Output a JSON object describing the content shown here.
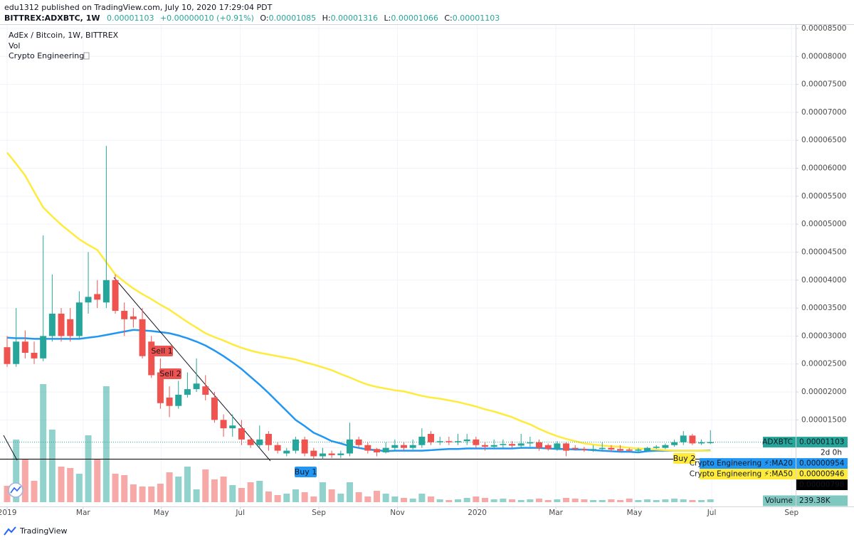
{
  "header": {
    "publisher": "edu1312 published on TradingView.com, July 10, 2020 17:29:04 PDT",
    "symbol": "BITTREX:ADXBTC, 1W",
    "last": "0.00001103",
    "change": "+0.00000010 (+0.91%)",
    "o_key": "O:",
    "o": "0.00001085",
    "h_key": "H:",
    "h": "0.00001316",
    "l_key": "L:",
    "l": "0.00001066",
    "c_key": "C:",
    "c": "0.00001103"
  },
  "legend": [
    "AdEx / Bitcoin, 1W, BITTREX",
    "Vol",
    "Crypto Engineering"
  ],
  "annotations": [
    "Sell 1",
    "Sell 2",
    "Buy 1",
    "Buy 2"
  ],
  "footer": "TradingView",
  "chart_data": {
    "type": "candlestick",
    "up_color": "#26a69a",
    "down_color": "#ef5350",
    "open": [
      2.8e-05,
      2.5e-05,
      2.9e-05,
      2.7e-05,
      2.6e-05,
      3e-05,
      3.4e-05,
      3.3e-05,
      3e-05,
      3.6e-05,
      3.75e-05,
      3.6e-05,
      4e-05,
      3.45e-05,
      3.35e-05,
      3.3e-05,
      2.9e-05,
      2.35e-05,
      1.9e-05,
      1.75e-05,
      1.95e-05,
      2.05e-05,
      2.1e-05,
      1.9e-05,
      1.5e-05,
      1.35e-05,
      1.35e-05,
      1.15e-05,
      1.05e-05,
      1.25e-05,
      1.05e-05,
      9e-06,
      9.5e-06,
      1.15e-05,
      9.5e-06,
      8.5e-06,
      9e-06,
      8.7e-06,
      9e-06,
      1.15e-05,
      1.05e-05,
      9.8e-06,
      9.2e-06,
      1e-05,
      1.05e-05,
      1e-05,
      1.05e-05,
      1.25e-05,
      1.1e-05,
      1.12e-05,
      1.1e-05,
      1.12e-05,
      1.15e-05,
      1.05e-05,
      1.02e-05,
      1.05e-05,
      1.07e-05,
      1.04e-05,
      1.08e-05,
      1.1e-05,
      1.05e-05,
      9.8e-06,
      1.08e-05,
      1e-05,
      9.8e-06,
      9.6e-06,
      9.8e-06,
      1e-05,
      9.8e-06,
      9.7e-06,
      9.5e-06,
      9.5e-06,
      1e-05,
      1e-05,
      1.05e-05,
      1.1e-05,
      1.22e-05,
      1.08e-05,
      1.085e-05
    ],
    "high": [
      3e-05,
      3.5e-05,
      3.1e-05,
      2.9e-05,
      4.8e-05,
      4.1e-05,
      3.5e-05,
      3.5e-05,
      3.8e-05,
      4.5e-05,
      4e-05,
      6.4e-05,
      4.1e-05,
      3.6e-05,
      3.5e-05,
      3.5e-05,
      3e-05,
      2.6e-05,
      2.1e-05,
      2.2e-05,
      2.35e-05,
      2.6e-05,
      2.3e-05,
      2e-05,
      1.6e-05,
      1.6e-05,
      1.5e-05,
      1.2e-05,
      1.4e-05,
      1.3e-05,
      1.1e-05,
      1e-05,
      1.2e-05,
      1.2e-05,
      1e-05,
      1e-05,
      9.5e-06,
      9.5e-06,
      1.45e-05,
      1.2e-05,
      1.1e-05,
      1e-05,
      1.1e-05,
      1.15e-05,
      1.1e-05,
      1.15e-05,
      1.35e-05,
      1.3e-05,
      1.2e-05,
      1.2e-05,
      1.25e-05,
      1.25e-05,
      1.2e-05,
      1.1e-05,
      1.15e-05,
      1.15e-05,
      1.12e-05,
      1.25e-05,
      1.2e-05,
      1.15e-05,
      1.08e-05,
      1.12e-05,
      1.1e-05,
      1.05e-05,
      1.02e-05,
      1.05e-05,
      1.1e-05,
      1.05e-05,
      1.05e-05,
      1e-05,
      1e-05,
      1.02e-05,
      1.05e-05,
      1.08e-05,
      1.15e-05,
      1.3e-05,
      1.25e-05,
      1.15e-05,
      1.316e-05
    ],
    "low": [
      2.45e-05,
      2.45e-05,
      2.6e-05,
      2.5e-05,
      2.55e-05,
      2.9e-05,
      2.9e-05,
      2.9e-05,
      2.95e-05,
      3.4e-05,
      3.5e-05,
      3.5e-05,
      3.4e-05,
      3e-05,
      3.15e-05,
      2.6e-05,
      2.25e-05,
      1.7e-05,
      1.55e-05,
      1.7e-05,
      1.9e-05,
      2e-05,
      1.85e-05,
      1.45e-05,
      1.2e-05,
      1.2e-05,
      1.05e-05,
      1e-05,
      1e-05,
      9.5e-06,
      9e-06,
      8.5e-06,
      9e-06,
      8.5e-06,
      8e-06,
      8e-06,
      8.2e-06,
      8.2e-06,
      8.5e-06,
      1e-05,
      9e-06,
      8.5e-06,
      9e-06,
      9.5e-06,
      9.5e-06,
      9.7e-06,
      1e-05,
      1.05e-05,
      1.05e-05,
      1.05e-05,
      1.05e-05,
      1.05e-05,
      1e-05,
      9.5e-06,
      9.8e-06,
      1e-05,
      1e-05,
      1e-05,
      1.02e-05,
      9.5e-06,
      9.5e-06,
      9.5e-06,
      8.5e-06,
      9.5e-06,
      9.3e-06,
      9.3e-06,
      9.5e-06,
      9.3e-06,
      9.2e-06,
      9.2e-06,
      9.2e-06,
      9.3e-06,
      9.8e-06,
      9.8e-06,
      1.02e-05,
      1.05e-05,
      1.05e-05,
      1.05e-05,
      1.066e-05
    ],
    "close": [
      2.5e-05,
      2.9e-05,
      2.7e-05,
      2.6e-05,
      3e-05,
      3.4e-05,
      3e-05,
      3e-05,
      3.6e-05,
      3.7e-05,
      3.65e-05,
      4e-05,
      3.45e-05,
      3.3e-05,
      3.3e-05,
      2.64e-05,
      2.3e-05,
      1.8e-05,
      1.75e-05,
      1.95e-05,
      2.05e-05,
      2.15e-05,
      1.95e-05,
      1.5e-05,
      1.35e-05,
      1.4e-05,
      1.15e-05,
      1.05e-05,
      1.15e-05,
      1.05e-05,
      9.5e-06,
      9.5e-06,
      1.15e-05,
      9e-06,
      8.5e-06,
      9e-06,
      8.7e-06,
      9e-06,
      1.15e-05,
      1.05e-05,
      9.5e-06,
      9.2e-06,
      1e-05,
      1.05e-05,
      1e-05,
      1.05e-05,
      1.2e-05,
      1.1e-05,
      1.12e-05,
      1.1e-05,
      1.12e-05,
      1.15e-05,
      1.05e-05,
      1.02e-05,
      1.05e-05,
      1.07e-05,
      1.04e-05,
      1.08e-05,
      1.1e-05,
      1e-05,
      9.8e-06,
      1.08e-05,
      9.5e-06,
      9.8e-06,
      9.6e-06,
      9.8e-06,
      1e-05,
      9.7e-06,
      9.5e-06,
      9.5e-06,
      9.7e-06,
      1e-05,
      1.02e-05,
      1.05e-05,
      1.1e-05,
      1.22e-05,
      1.08e-05,
      1.1e-05,
      1.103e-05
    ],
    "symbol_tag": "ADXBTC",
    "close_label": "0.00001103",
    "countdown": "2d 0h",
    "volume": {
      "name": "Volume",
      "value_label": "239.38K",
      "values": [
        1380000,
        5280000,
        3600000,
        1800000,
        9960000,
        6120000,
        3000000,
        2880000,
        2400000,
        5640000,
        3600000,
        9780000,
        2400000,
        2280000,
        1500000,
        1320000,
        1320000,
        1560000,
        2520000,
        2160000,
        3000000,
        1080000,
        2760000,
        1920000,
        2160000,
        1440000,
        1200000,
        1680000,
        1800000,
        900000,
        600000,
        720000,
        1080000,
        840000,
        480000,
        1680000,
        1080000,
        720000,
        1680000,
        840000,
        480000,
        960000,
        720000,
        480000,
        360000,
        300000,
        720000,
        480000,
        240000,
        180000,
        240000,
        360000,
        480000,
        360000,
        240000,
        300000,
        240000,
        180000,
        240000,
        300000,
        180000,
        240000,
        360000,
        300000,
        240000,
        180000,
        180000,
        240000,
        180000,
        300000,
        180000,
        240000,
        180000,
        240000,
        300000,
        240000,
        180000,
        180000,
        239380
      ]
    },
    "series": [
      {
        "name": "Crypto Engineering ⚡:MA20",
        "color": "#2196f3",
        "value_label": "0.00000954",
        "values": [
          2.97e-05,
          2.96e-05,
          2.96e-05,
          2.95e-05,
          2.95e-05,
          2.95e-05,
          2.95e-05,
          2.95e-05,
          2.95e-05,
          2.97e-05,
          2.99e-05,
          3.02e-05,
          3.05e-05,
          3.08e-05,
          3.11e-05,
          3.1e-05,
          3.09e-05,
          3.07e-05,
          3.05e-05,
          3.01e-05,
          2.96e-05,
          2.9e-05,
          2.83e-05,
          2.74e-05,
          2.64e-05,
          2.53e-05,
          2.41e-05,
          2.27e-05,
          2.13e-05,
          1.98e-05,
          1.82e-05,
          1.66e-05,
          1.5e-05,
          1.39e-05,
          1.27e-05,
          1.2e-05,
          1.12e-05,
          1.08e-05,
          1.03e-05,
          1e-05,
          9.7e-06,
          9.6e-06,
          9.4e-06,
          9.5e-06,
          9.5e-06,
          9.5e-06,
          9.5e-06,
          9.6e-06,
          9.7e-06,
          9.8e-06,
          9.8e-06,
          9.9e-06,
          9.9e-06,
          9.9e-06,
          9.9e-06,
          9.9e-06,
          9.9e-06,
          1e-05,
          1e-05,
          1e-05,
          9.9e-06,
          9.8e-06,
          9.8e-06,
          9.7e-06,
          9.7e-06,
          9.6e-06,
          9.5e-06,
          9.4e-06,
          9.3e-06,
          9.3e-06,
          9.2e-06,
          9.4e-06,
          9.5e-06,
          9.5e-06,
          9.5e-06,
          9.5e-06,
          9.5e-06,
          9.5e-06,
          9.54e-06
        ]
      },
      {
        "name": "Crypto Engineering ⚡:MA50",
        "color": "#ffeb3b",
        "value_label": "0.00000946",
        "values": [
          6.28e-05,
          6.08e-05,
          5.87e-05,
          5.58e-05,
          5.3e-05,
          5.14e-05,
          4.99e-05,
          4.86e-05,
          4.73e-05,
          4.63e-05,
          4.54e-05,
          4.32e-05,
          4.1e-05,
          3.97e-05,
          3.85e-05,
          3.75e-05,
          3.66e-05,
          3.56e-05,
          3.47e-05,
          3.36e-05,
          3.25e-05,
          3.15e-05,
          3.05e-05,
          2.98e-05,
          2.92e-05,
          2.85e-05,
          2.79e-05,
          2.74e-05,
          2.7e-05,
          2.67e-05,
          2.64e-05,
          2.61e-05,
          2.58e-05,
          2.53e-05,
          2.49e-05,
          2.44e-05,
          2.39e-05,
          2.32e-05,
          2.26e-05,
          2.19e-05,
          2.13e-05,
          2.09e-05,
          2.06e-05,
          2.03e-05,
          2.01e-05,
          1.97e-05,
          1.93e-05,
          1.9e-05,
          1.88e-05,
          1.85e-05,
          1.82e-05,
          1.78e-05,
          1.74e-05,
          1.69e-05,
          1.65e-05,
          1.6e-05,
          1.55e-05,
          1.48e-05,
          1.42e-05,
          1.34e-05,
          1.27e-05,
          1.21e-05,
          1.16e-05,
          1.12e-05,
          1.08e-05,
          1.06e-05,
          1.04e-05,
          1.03e-05,
          1.02e-05,
          1e-05,
          9.9e-06,
          9.8e-06,
          9.7e-06,
          9.6e-06,
          9.5e-06,
          9.5e-06,
          9.5e-06,
          9.5e-06,
          9.46e-06
        ]
      }
    ],
    "hline": {
      "value": 7.98e-06,
      "label": "0.00000798",
      "color": "#000000"
    },
    "ylim": [
      -4.7e-07,
      8.563e-05
    ],
    "yticks": [
      {
        "value": 1e-05,
        "label": "0.00001000"
      },
      {
        "value": 1.5e-05,
        "label": "0.00001500"
      },
      {
        "value": 2e-05,
        "label": "0.00002000"
      },
      {
        "value": 2.5e-05,
        "label": "0.00002500"
      },
      {
        "value": 3e-05,
        "label": "0.00003000"
      },
      {
        "value": 3.5e-05,
        "label": "0.00003500"
      },
      {
        "value": 4e-05,
        "label": "0.00004000"
      },
      {
        "value": 4.5e-05,
        "label": "0.00004500"
      },
      {
        "value": 5e-05,
        "label": "0.00005000"
      },
      {
        "value": 5.5e-05,
        "label": "0.00005500"
      },
      {
        "value": 6e-05,
        "label": "0.00006000"
      },
      {
        "value": 6.5e-05,
        "label": "0.00006500"
      },
      {
        "value": 7e-05,
        "label": "0.00007000"
      },
      {
        "value": 7.5e-05,
        "label": "0.00007500"
      },
      {
        "value": 8e-05,
        "label": "0.00008000"
      },
      {
        "value": 8.5e-05,
        "label": "0.00008500"
      }
    ],
    "xlim": [
      -0.79,
      87.45
    ],
    "xticks": [
      {
        "value": 0,
        "label": "2019"
      },
      {
        "value": 8.43,
        "label": "Mar"
      },
      {
        "value": 17.1,
        "label": "May"
      },
      {
        "value": 25.86,
        "label": "Jul"
      },
      {
        "value": 34.57,
        "label": "Sep"
      },
      {
        "value": 43.29,
        "label": "Nov"
      },
      {
        "value": 52.14,
        "label": "2020"
      },
      {
        "value": 60.86,
        "label": "Mar"
      },
      {
        "value": 69.57,
        "label": "May"
      },
      {
        "value": 78.14,
        "label": "Jul"
      },
      {
        "value": 87,
        "label": "Sep"
      }
    ],
    "grid": true
  }
}
